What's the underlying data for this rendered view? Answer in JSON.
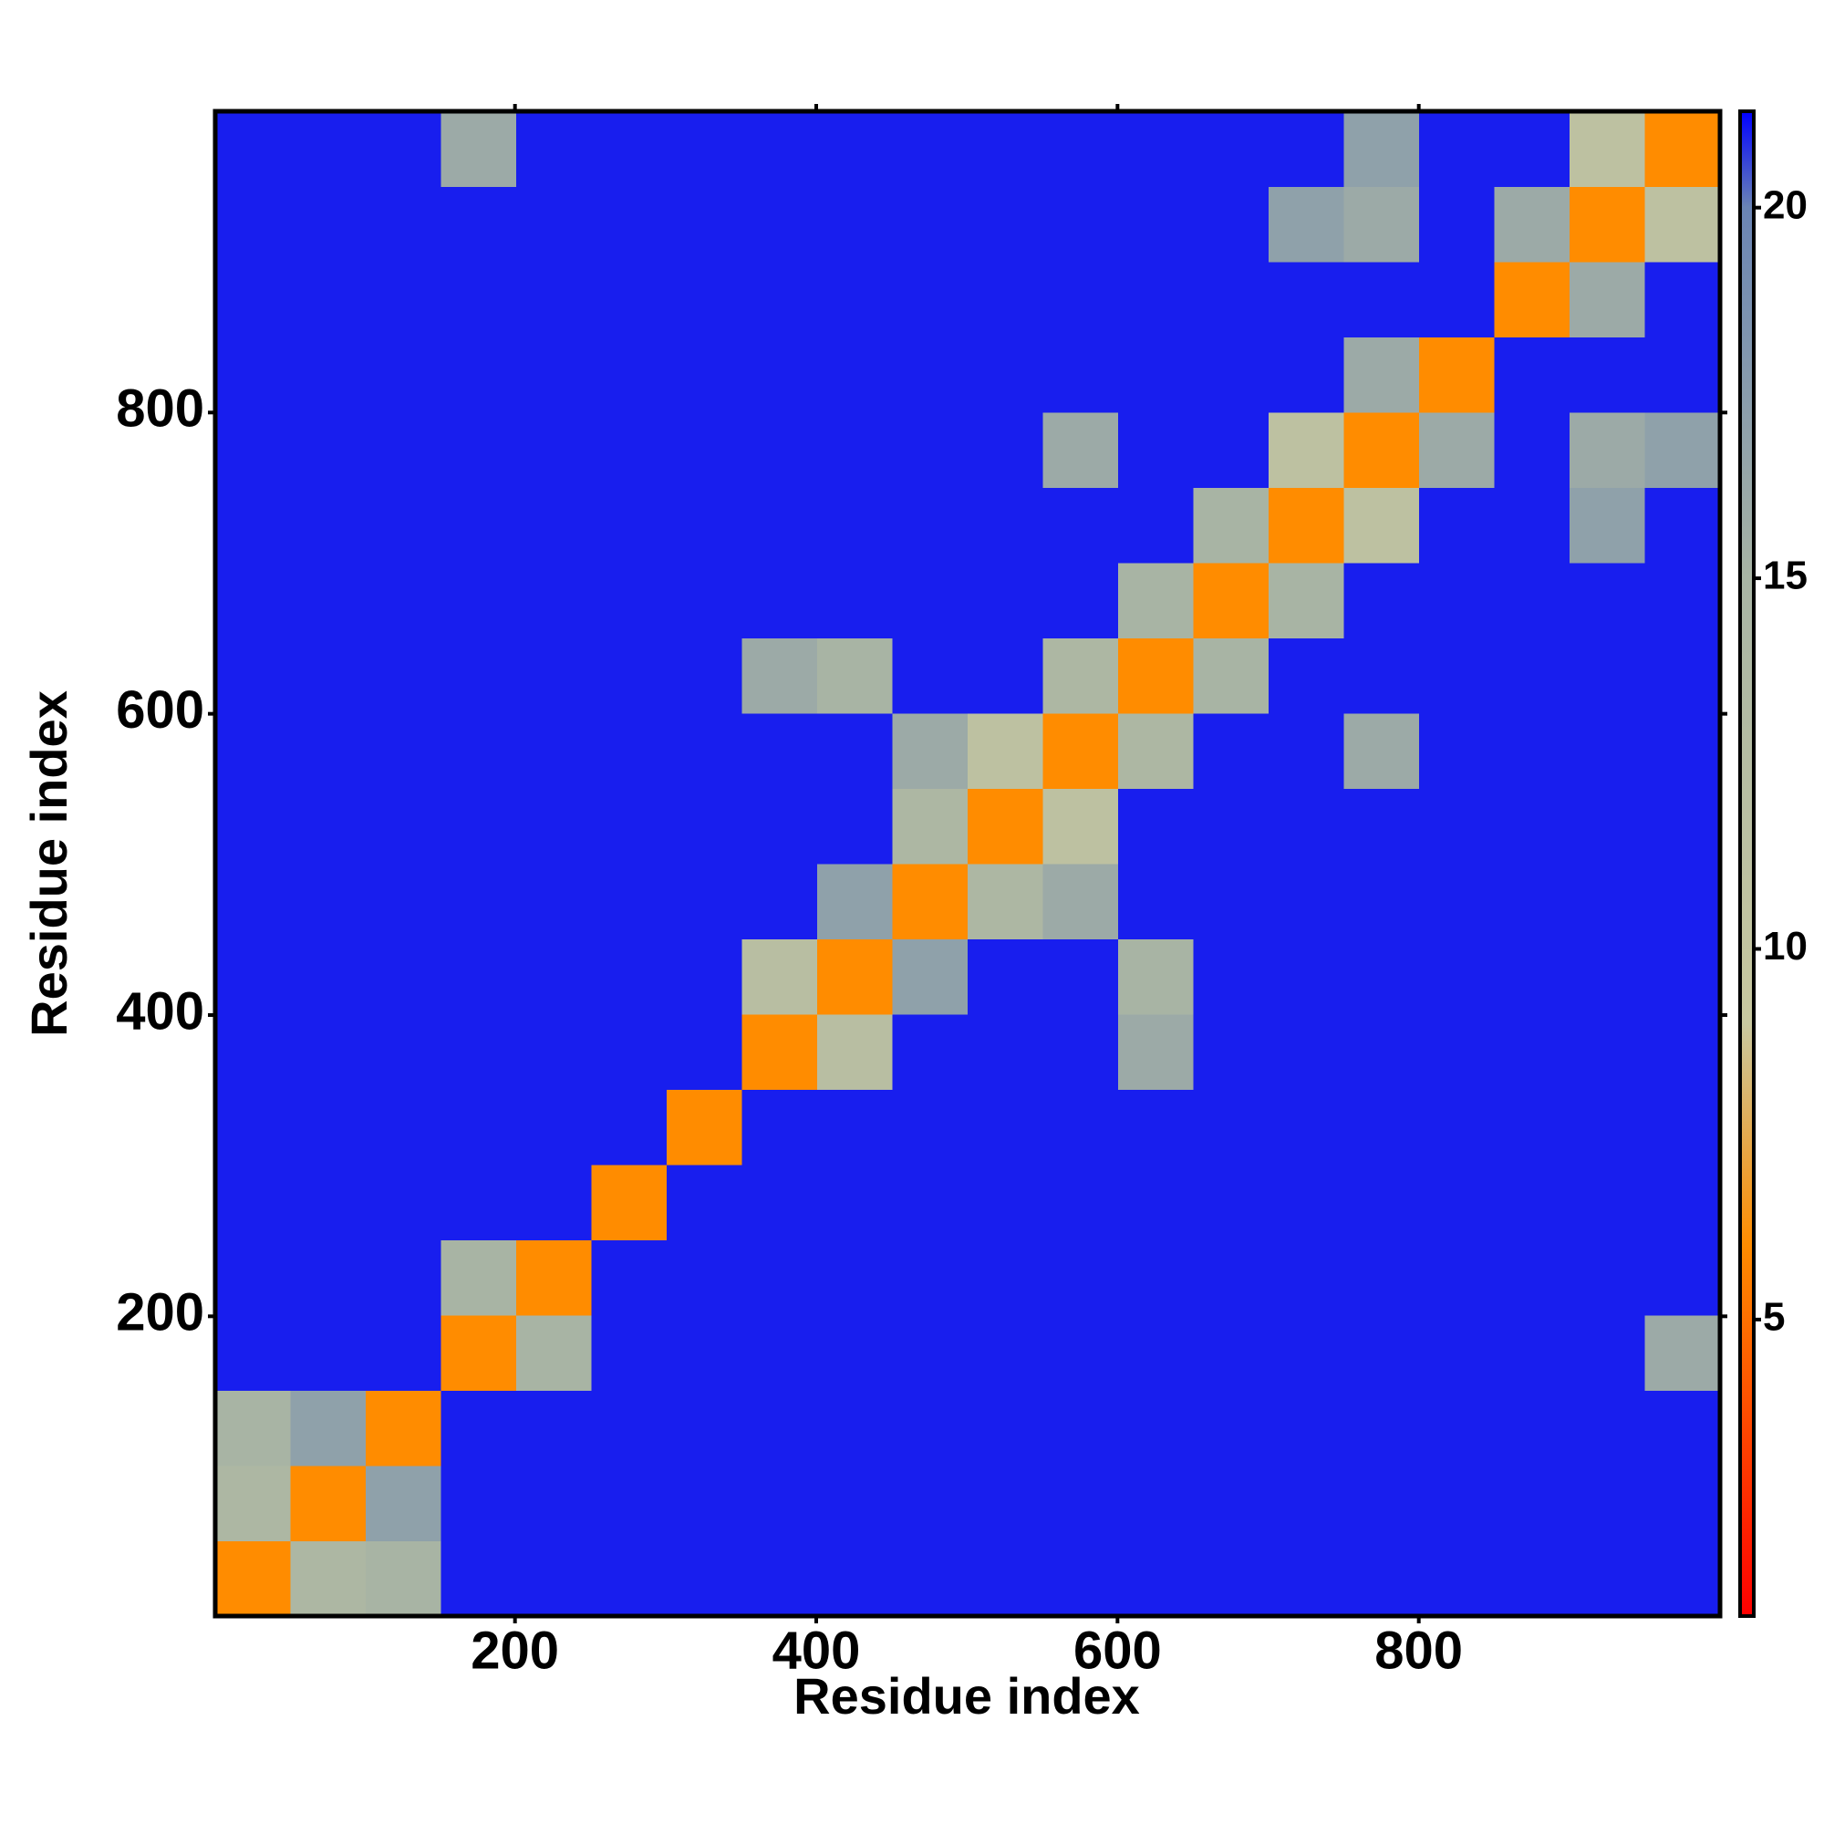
{
  "chart_data": {
    "type": "heatmap",
    "xlabel": "Residue index",
    "ylabel": "Residue index",
    "xlim": [
      1,
      1000
    ],
    "ylim": [
      1,
      1000
    ],
    "xticks": [
      200,
      400,
      600,
      800
    ],
    "yticks": [
      200,
      400,
      600,
      800
    ],
    "zlim": [
      1,
      21.3
    ],
    "zticks": [
      5,
      10,
      15,
      20
    ],
    "colorscale": [
      [
        1,
        "#ff0000"
      ],
      [
        6,
        "#ff8c00"
      ],
      [
        9,
        "#c8c8a0"
      ],
      [
        15,
        "#a8b4a4"
      ],
      [
        20,
        "#6a84b4"
      ],
      [
        21.3,
        "#0000ff"
      ]
    ],
    "z": [
      [
        6,
        14,
        15,
        21,
        21,
        21,
        21,
        21,
        21,
        21,
        21,
        21,
        21,
        21,
        21,
        21,
        21,
        21,
        21,
        21
      ],
      [
        14,
        6,
        17,
        21,
        21,
        21,
        21,
        21,
        21,
        21,
        21,
        21,
        21,
        21,
        21,
        21,
        21,
        21,
        21,
        21
      ],
      [
        15,
        17,
        6,
        21,
        21,
        21,
        21,
        21,
        21,
        21,
        21,
        21,
        21,
        21,
        21,
        21,
        21,
        21,
        21,
        21
      ],
      [
        21,
        21,
        21,
        6,
        15,
        21,
        21,
        21,
        21,
        21,
        21,
        21,
        21,
        21,
        21,
        21,
        21,
        21,
        21,
        16
      ],
      [
        21,
        21,
        21,
        15,
        6,
        21,
        21,
        21,
        21,
        21,
        21,
        21,
        21,
        21,
        21,
        21,
        21,
        21,
        21,
        21
      ],
      [
        21,
        21,
        21,
        21,
        21,
        6,
        21,
        21,
        21,
        21,
        21,
        21,
        21,
        21,
        21,
        21,
        21,
        21,
        21,
        21
      ],
      [
        21,
        21,
        21,
        21,
        21,
        21,
        6,
        21,
        21,
        21,
        21,
        21,
        21,
        21,
        21,
        21,
        21,
        21,
        21,
        21
      ],
      [
        21,
        21,
        21,
        21,
        21,
        21,
        21,
        6,
        12,
        21,
        21,
        21,
        16,
        21,
        21,
        21,
        21,
        21,
        21,
        21
      ],
      [
        21,
        21,
        21,
        21,
        21,
        21,
        21,
        12,
        6,
        17,
        21,
        21,
        15,
        21,
        21,
        21,
        21,
        21,
        21,
        21
      ],
      [
        21,
        21,
        21,
        21,
        21,
        21,
        21,
        21,
        17,
        6,
        14,
        16,
        21,
        21,
        21,
        21,
        21,
        21,
        21,
        21
      ],
      [
        21,
        21,
        21,
        21,
        21,
        21,
        21,
        21,
        21,
        14,
        6,
        11,
        21,
        21,
        21,
        21,
        21,
        21,
        21,
        21
      ],
      [
        21,
        21,
        21,
        21,
        21,
        21,
        21,
        21,
        21,
        16,
        11,
        6,
        14,
        21,
        21,
        16,
        21,
        21,
        21,
        21
      ],
      [
        21,
        21,
        21,
        21,
        21,
        21,
        21,
        16,
        15,
        21,
        21,
        14,
        6,
        15,
        21,
        21,
        21,
        21,
        21,
        21
      ],
      [
        21,
        21,
        21,
        21,
        21,
        21,
        21,
        21,
        21,
        21,
        21,
        21,
        15,
        6,
        15,
        21,
        21,
        21,
        21,
        21
      ],
      [
        21,
        21,
        21,
        21,
        21,
        21,
        21,
        21,
        21,
        21,
        21,
        21,
        21,
        15,
        6,
        11,
        21,
        21,
        17,
        21
      ],
      [
        21,
        21,
        21,
        21,
        21,
        21,
        21,
        21,
        21,
        21,
        21,
        16,
        21,
        21,
        11,
        6,
        16,
        21,
        16,
        17
      ],
      [
        21,
        21,
        21,
        21,
        21,
        21,
        21,
        21,
        21,
        21,
        21,
        21,
        21,
        21,
        21,
        16,
        6,
        21,
        21,
        21
      ],
      [
        21,
        21,
        21,
        21,
        21,
        21,
        21,
        21,
        21,
        21,
        21,
        21,
        21,
        21,
        21,
        21,
        21,
        6,
        16,
        21
      ],
      [
        21,
        21,
        21,
        21,
        21,
        21,
        21,
        21,
        21,
        21,
        21,
        21,
        21,
        21,
        17,
        16,
        21,
        16,
        6,
        11
      ],
      [
        21,
        21,
        21,
        16,
        21,
        21,
        21,
        21,
        21,
        21,
        21,
        21,
        21,
        21,
        21,
        17,
        21,
        21,
        11,
        6
      ]
    ]
  }
}
